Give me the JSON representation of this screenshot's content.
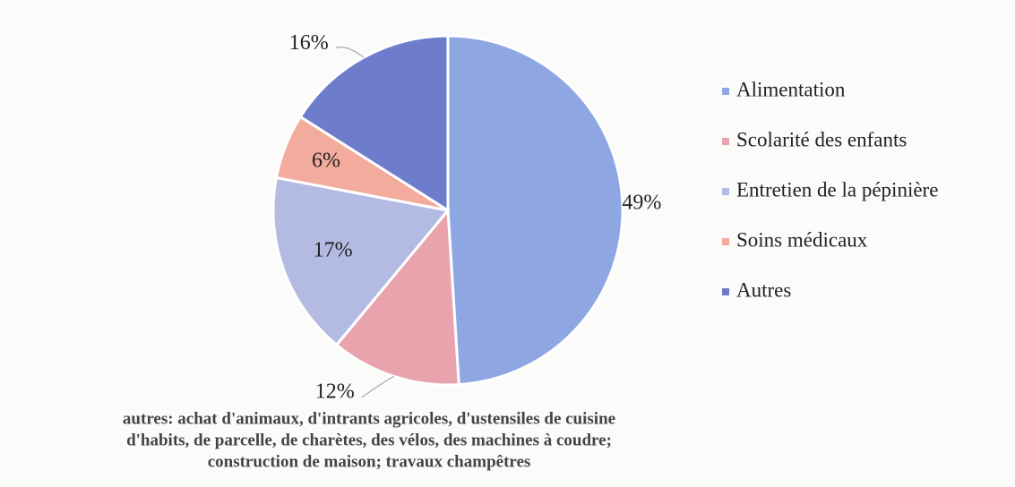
{
  "chart_data": {
    "type": "pie",
    "categories": [
      "Alimentation",
      "Scolarité des enfants",
      "Entretien de la pépinière",
      "Soins médicaux",
      "Autres"
    ],
    "values": [
      49,
      12,
      17,
      6,
      16
    ],
    "value_labels": [
      "49%",
      "12%",
      "17%",
      "6%",
      "16%"
    ],
    "colors": [
      "#8ea7e2",
      "#e9a3ad",
      "#b3bbe3",
      "#f2ab9c",
      "#6d7dcb"
    ],
    "legend": "right",
    "annotation": [
      "autres: achat d'animaux, d'intrants agricoles, d'ustensiles de cuisine",
      "d'habits, de parcelle, de charètes, des vélos, des machines à coudre;",
      "construction de maison; travaux champêtres"
    ]
  }
}
